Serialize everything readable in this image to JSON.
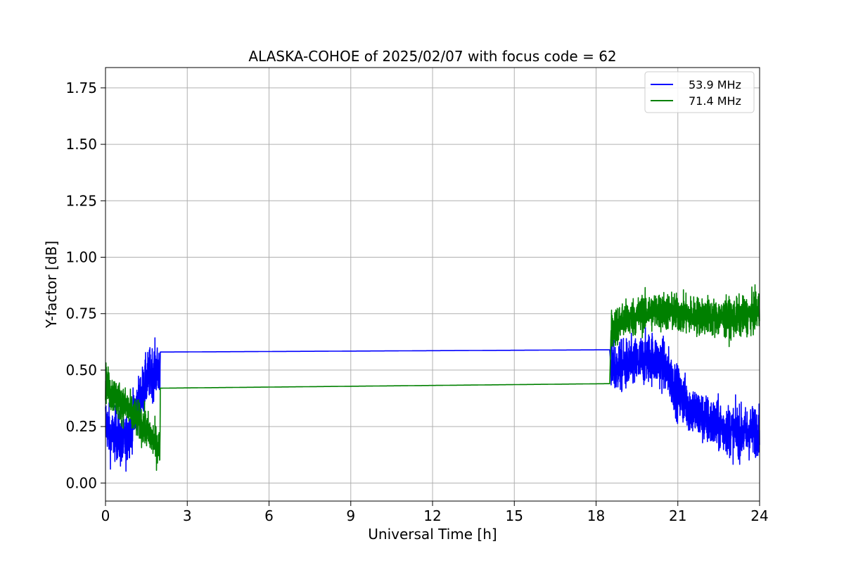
{
  "chart_data": {
    "type": "line",
    "title": "ALASKA-COHOE of 2025/02/07 with focus code = 62",
    "xlabel": "Universal Time [h]",
    "ylabel": "Y-factor [dB]",
    "xlim": [
      0,
      24
    ],
    "ylim": [
      -0.08,
      1.84
    ],
    "xticks": [
      0,
      3,
      6,
      9,
      12,
      15,
      18,
      21,
      24
    ],
    "xtick_labels": [
      "0",
      "3",
      "6",
      "9",
      "12",
      "15",
      "18",
      "21",
      "24"
    ],
    "yticks": [
      0.0,
      0.25,
      0.5,
      0.75,
      1.0,
      1.25,
      1.5,
      1.75
    ],
    "ytick_labels": [
      "0.00",
      "0.25",
      "0.50",
      "0.75",
      "1.00",
      "1.25",
      "1.50",
      "1.75"
    ],
    "grid": true,
    "legend_position": "top-right",
    "series": [
      {
        "name": "53.9 MHz",
        "color": "#0000ff",
        "x": [
          0,
          0.2,
          0.4,
          0.6,
          0.8,
          1.0,
          1.2,
          1.4,
          1.6,
          1.8,
          2.0,
          2.01,
          18.5,
          18.55,
          19.0,
          19.5,
          20.0,
          20.5,
          21.0,
          21.5,
          22.0,
          22.5,
          23.0,
          23.5,
          24.0
        ],
        "y": [
          0.28,
          0.2,
          0.22,
          0.17,
          0.2,
          0.28,
          0.35,
          0.42,
          0.48,
          0.5,
          0.5,
          0.58,
          0.59,
          0.5,
          0.52,
          0.53,
          0.56,
          0.52,
          0.4,
          0.33,
          0.28,
          0.25,
          0.23,
          0.22,
          0.24
        ]
      },
      {
        "name": "71.4 MHz",
        "color": "#008000",
        "x": [
          0,
          0.2,
          0.4,
          0.6,
          0.8,
          1.0,
          1.2,
          1.4,
          1.6,
          1.8,
          2.0,
          2.01,
          18.5,
          18.55,
          19.0,
          19.5,
          20.0,
          20.5,
          21.0,
          21.5,
          22.0,
          22.5,
          23.0,
          23.5,
          24.0
        ],
        "y": [
          0.45,
          0.4,
          0.38,
          0.35,
          0.33,
          0.3,
          0.28,
          0.25,
          0.22,
          0.18,
          0.15,
          0.42,
          0.44,
          0.68,
          0.72,
          0.74,
          0.76,
          0.76,
          0.75,
          0.74,
          0.74,
          0.73,
          0.73,
          0.74,
          0.76
        ]
      }
    ]
  }
}
